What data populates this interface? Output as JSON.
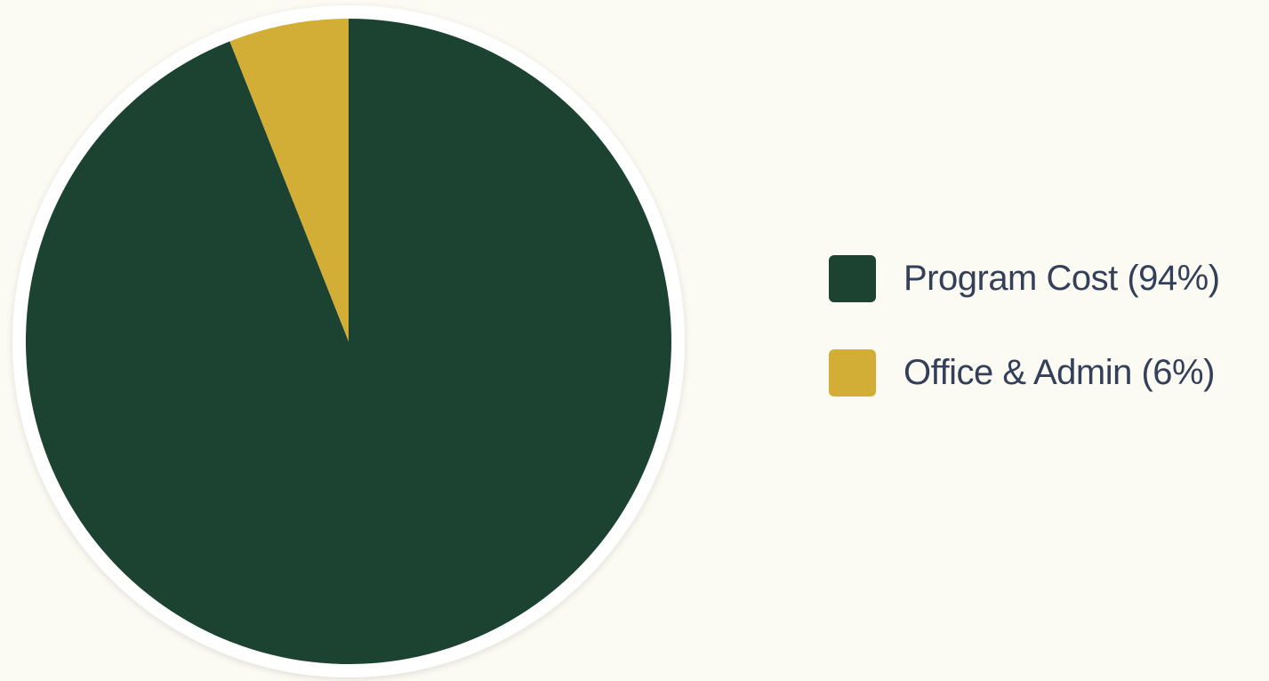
{
  "chart_data": {
    "type": "pie",
    "slices": [
      {
        "label": "Program Cost (94%)",
        "value": 94,
        "color": "#1c4332"
      },
      {
        "label": "Office & Admin (6%)",
        "value": 6,
        "color": "#d3ae37"
      }
    ],
    "title": "",
    "start_angle_deg": 0,
    "direction": "clockwise",
    "legend_position": "right",
    "border_color": "#ffffff"
  }
}
